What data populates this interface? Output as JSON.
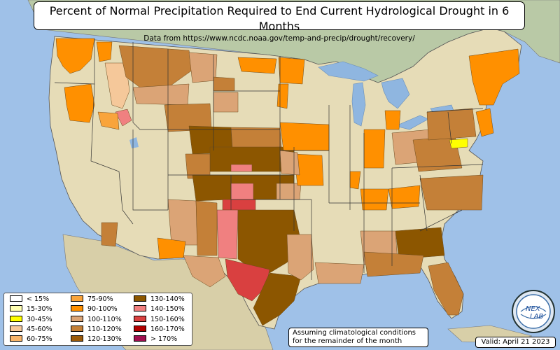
{
  "title": "Percent of Normal Precipitation Required to End Current Hydrological Drought in 6 Months",
  "subtitle": "Data from https://www.ncdc.noaa.gov/temp-and-precip/drought/recovery/",
  "note_lines": [
    "Assuming climatological conditions",
    "for the remainder of the month"
  ],
  "valid": "Valid: April 21 2023",
  "logo_text": [
    "NEX",
    "LAB"
  ],
  "legend": [
    {
      "label": "< 15%",
      "color": "#ffffff"
    },
    {
      "label": "15-30%",
      "color": "#ffffb2"
    },
    {
      "label": "30-45%",
      "color": "#ffff00"
    },
    {
      "label": "45-60%",
      "color": "#f5c89a"
    },
    {
      "label": "60-75%",
      "color": "#f7b46a"
    },
    {
      "label": "75-90%",
      "color": "#f9a43b"
    },
    {
      "label": "90-100%",
      "color": "#ff9000"
    },
    {
      "label": "100-110%",
      "color": "#dba476"
    },
    {
      "label": "110-120%",
      "color": "#c48038"
    },
    {
      "label": "120-130%",
      "color": "#9a5a0a"
    },
    {
      "label": "130-140%",
      "color": "#8c5600"
    },
    {
      "label": "140-150%",
      "color": "#f08080"
    },
    {
      "label": "150-160%",
      "color": "#d94040"
    },
    {
      "label": "160-170%",
      "color": "#b00000"
    },
    {
      "label": "> 170%",
      "color": "#a0104f"
    }
  ],
  "colors": {
    "ocean": "#9fc1e8",
    "land": "#e6dcb7",
    "lake": "#8fb6e0",
    "canada": "#b9c9a6",
    "mexico": "#d8cfa8"
  }
}
